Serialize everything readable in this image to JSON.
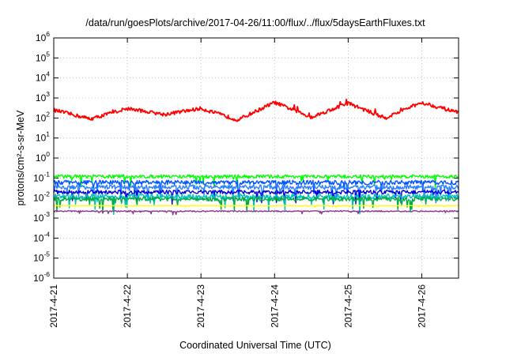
{
  "chart_data": {
    "type": "line",
    "title": "/data/run/goesPlots/archive/2017-04-26/11:00/flux/../flux/5daysEarthFluxes.txt",
    "xlabel": "Coordinated Universal Time (UTC)",
    "ylabel": "protons/cm²-s-sr-MeV",
    "yscale": "log",
    "ylim_exponents": [
      -6,
      6
    ],
    "y_ticks": [
      {
        "base": "10",
        "exp": "-6"
      },
      {
        "base": "10",
        "exp": "-5"
      },
      {
        "base": "10",
        "exp": "-4"
      },
      {
        "base": "10",
        "exp": "-3"
      },
      {
        "base": "10",
        "exp": "-2"
      },
      {
        "base": "10",
        "exp": "-1"
      },
      {
        "base": "10",
        "exp": "0"
      },
      {
        "base": "10",
        "exp": "1"
      },
      {
        "base": "10",
        "exp": "2"
      },
      {
        "base": "10",
        "exp": "3"
      },
      {
        "base": "10",
        "exp": "4"
      },
      {
        "base": "10",
        "exp": "5"
      },
      {
        "base": "10",
        "exp": "6"
      }
    ],
    "x_ticks": [
      "2017-4-21",
      "2017-4-22",
      "2017-4-23",
      "2017-4-24",
      "2017-4-25",
      "2017-4-26"
    ],
    "x_range_days": [
      "2017-04-21T00:00",
      "2017-04-26T12:00"
    ],
    "grid": true,
    "series": [
      {
        "color": "#ff0000",
        "base": 150,
        "amp": 2.2,
        "noise": 0.45,
        "x": [
          "2017-04-21",
          "2017-04-21T12:00",
          "2017-04-22",
          "2017-04-22T12:00",
          "2017-04-23",
          "2017-04-23T12:00",
          "2017-04-24",
          "2017-04-24T12:00",
          "2017-04-25",
          "2017-04-25T12:00",
          "2017-04-26",
          "2017-04-26T12:00"
        ],
        "y": [
          250,
          90,
          300,
          150,
          300,
          80,
          600,
          110,
          550,
          100,
          600,
          180
        ]
      },
      {
        "color": "#00ff00",
        "base": 0.12,
        "amp": 1.0,
        "noise": 0.35
      },
      {
        "color": "#0055ff",
        "base": 0.06,
        "amp": 1.0,
        "noise": 0.45
      },
      {
        "color": "#2a7fff",
        "base": 0.035,
        "amp": 1.0,
        "noise": 0.45
      },
      {
        "color": "#0000dd",
        "base": 0.02,
        "amp": 1.0,
        "noise": 0.4
      },
      {
        "color": "#00c0c0",
        "base": 0.012,
        "amp": 1.0,
        "noise": 0.5
      },
      {
        "color": "#00aa44",
        "base": 0.009,
        "amp": 1.0,
        "noise": 0.4
      },
      {
        "color": "#ffff00",
        "base": 0.0042,
        "amp": 1.0,
        "noise": 0.05
      },
      {
        "color": "#8b3a8b",
        "base": 0.0022,
        "amp": 1.0,
        "noise": 0.12
      }
    ]
  }
}
